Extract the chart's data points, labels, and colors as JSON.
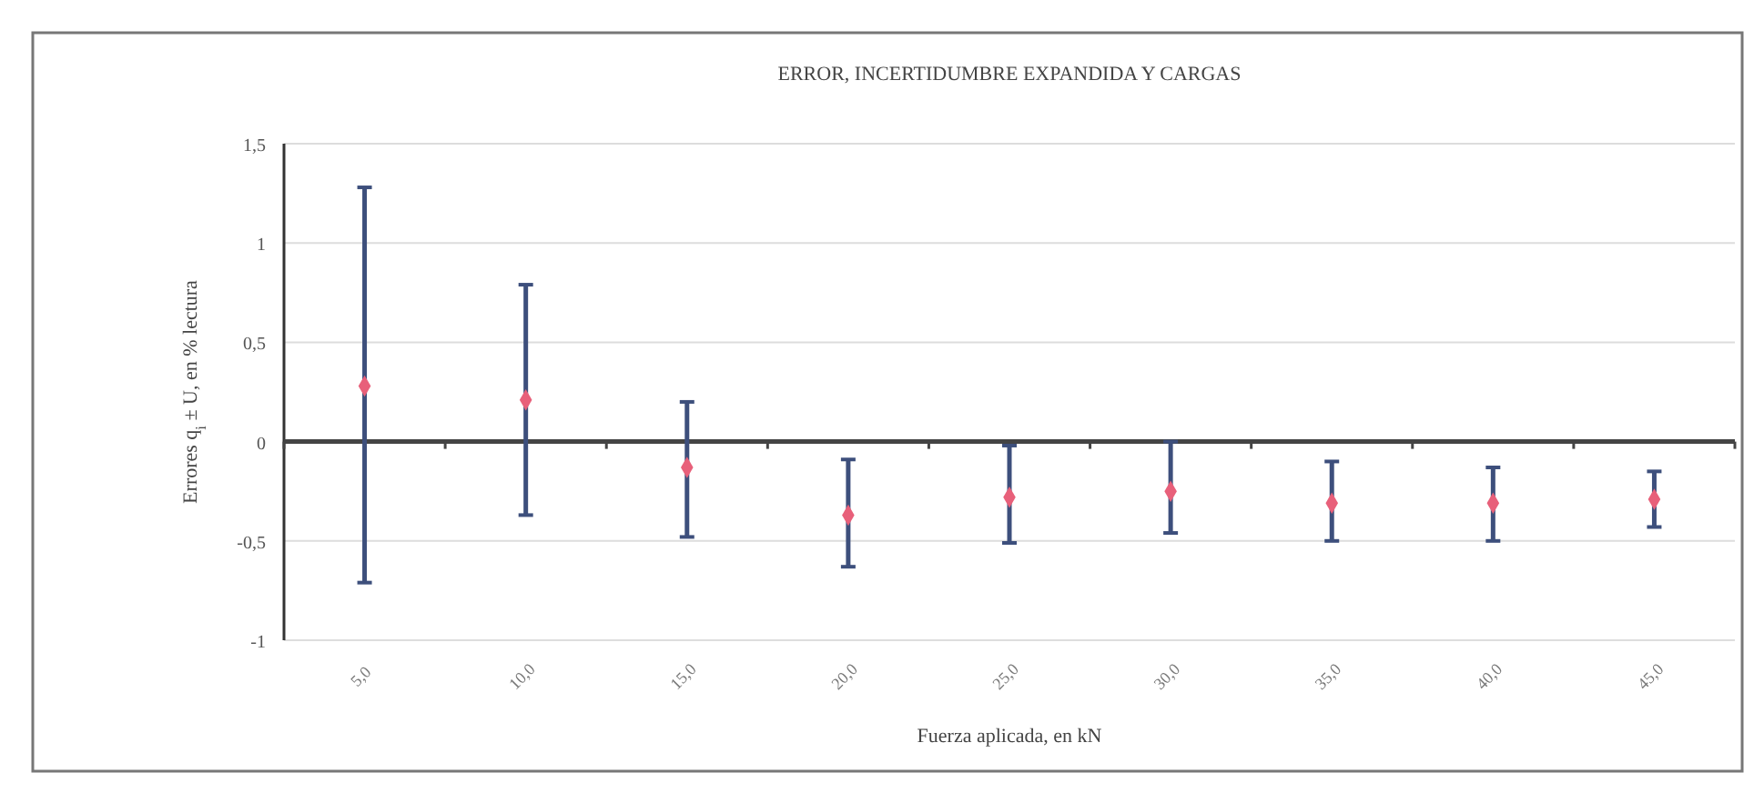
{
  "chart_data": {
    "type": "scatter",
    "title": "ERROR, INCERTIDUMBRE EXPANDIDA Y CARGAS",
    "xlabel": "Fuerza aplicada, en kN",
    "ylabel": "Errores q$_{i}$ ± U, en % lectura",
    "categories": [
      "5,0",
      "10,0",
      "15,0",
      "20,0",
      "25,0",
      "30,0",
      "35,0",
      "40,0",
      "45,0"
    ],
    "series": [
      {
        "color": "#e8607a",
        "values": [
          0.28,
          0.21,
          -0.13,
          -0.37,
          -0.28,
          -0.25,
          -0.31,
          -0.31,
          -0.29
        ],
        "errors": [
          [
            -0.71,
            1.28
          ],
          [
            -0.37,
            0.79
          ],
          [
            -0.48,
            0.2
          ],
          [
            -0.63,
            -0.09
          ],
          [
            -0.51,
            -0.02
          ],
          [
            -0.46,
            0
          ],
          [
            -0.5,
            -0.1
          ],
          [
            -0.5,
            -0.13
          ],
          [
            -0.43,
            -0.15
          ]
        ]
      }
    ],
    "ylim": [
      -1,
      1.5
    ],
    "yticks": [
      {
        "value": -1,
        "label": "-1"
      },
      {
        "value": -0.5,
        "label": "-0,5"
      },
      0,
      {
        "value": 0.5,
        "label": "0,5"
      },
      1,
      {
        "value": 1.5,
        "label": "1,5"
      }
    ],
    "grid": "y",
    "marker": "diamond"
  }
}
